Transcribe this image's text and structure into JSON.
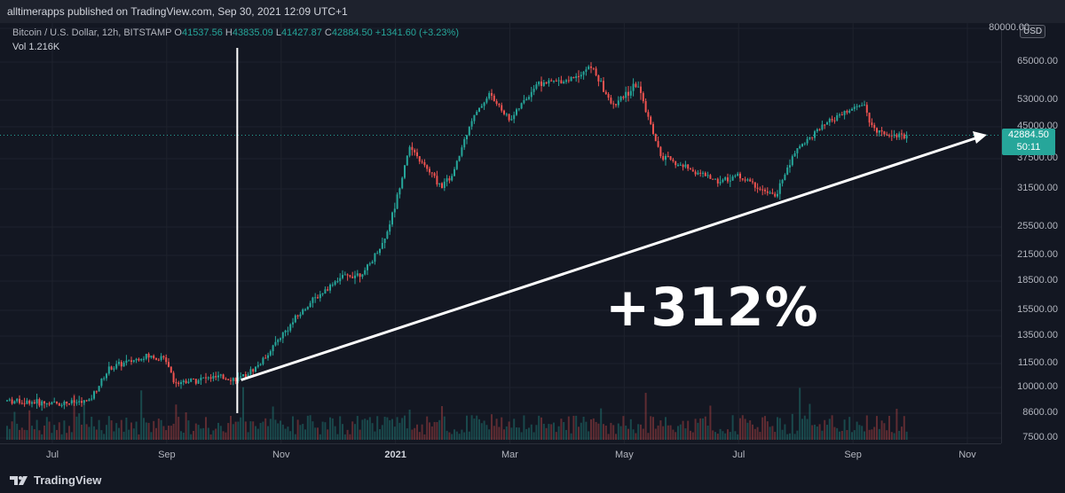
{
  "header": {
    "publisher_text": "alltimerapps published on TradingView.com, Sep 30, 2021 12:09 UTC+1"
  },
  "legend": {
    "symbol": "Bitcoin / U.S. Dollar, 12h, BITSTAMP",
    "open_label": "O",
    "open": "41537.56",
    "high_label": "H",
    "high": "43835.09",
    "low_label": "L",
    "low": "41427.87",
    "close_label": "C",
    "close": "42884.50",
    "change": "+1341.60 (+3.23%)",
    "vol_label": "Vol",
    "vol": "1.216K"
  },
  "price_scale": {
    "currency": "USD",
    "last_price": "42884.50",
    "countdown": "50:11"
  },
  "annotation": {
    "percent_text": "+312%"
  },
  "footer": {
    "brand": "TradingView"
  },
  "colors": {
    "up": "#26a69a",
    "down": "#ef5350",
    "background": "#131722",
    "annotation": "#ffffff",
    "dotted_line": "#26a69a"
  },
  "chart_data": {
    "type": "candlestick",
    "title": "Bitcoin / U.S. Dollar, 12h, BITSTAMP",
    "y_scale": "log",
    "ylim": [
      7500,
      80000
    ],
    "y_ticks": [
      7500,
      8600,
      10000,
      11500,
      13500,
      15500,
      18500,
      21500,
      25500,
      31500,
      37500,
      45000,
      53000,
      65000,
      80000
    ],
    "y_tick_labels": [
      "7500.00",
      "8600.00",
      "10000.00",
      "11500.00",
      "13500.00",
      "15500.00",
      "18500.00",
      "21500.00",
      "25500.00",
      "31500.00",
      "37500.00",
      "45000.00",
      "53000.00",
      "65000.00",
      "80000.00"
    ],
    "x_ticks": [
      "Jul",
      "Sep",
      "Nov",
      "2021",
      "Mar",
      "May",
      "Jul",
      "Sep",
      "Nov"
    ],
    "x_tick_months": [
      0,
      2,
      4,
      6,
      8,
      10,
      12,
      14,
      16
    ],
    "x_start": "2020-06",
    "series": [
      {
        "name": "BTCUSD",
        "points": [
          [
            "2020-06",
            9300
          ],
          [
            "2020-07",
            9100
          ],
          [
            "2020-07-20",
            9200
          ],
          [
            "2020-08",
            11200
          ],
          [
            "2020-08-20",
            12000
          ],
          [
            "2020-09",
            11800
          ],
          [
            "2020-09-05",
            10300
          ],
          [
            "2020-09-25",
            10600
          ],
          [
            "2020-10-10",
            10500
          ],
          [
            "2020-10-20",
            11500
          ],
          [
            "2020-11",
            13500
          ],
          [
            "2020-11-15",
            16000
          ],
          [
            "2020-12",
            18800
          ],
          [
            "2020-12-15",
            19500
          ],
          [
            "2020-12-25",
            23500
          ],
          [
            "2021-01",
            29000
          ],
          [
            "2021-01-08",
            40000
          ],
          [
            "2021-01-25",
            32000
          ],
          [
            "2021-02",
            34000
          ],
          [
            "2021-02-10",
            46000
          ],
          [
            "2021-02-20",
            55000
          ],
          [
            "2021-03",
            47000
          ],
          [
            "2021-03-15",
            58000
          ],
          [
            "2021-04",
            59000
          ],
          [
            "2021-04-14",
            63500
          ],
          [
            "2021-04-25",
            51000
          ],
          [
            "2021-05-08",
            58000
          ],
          [
            "2021-05-20",
            38000
          ],
          [
            "2021-06",
            36000
          ],
          [
            "2021-06-20",
            33000
          ],
          [
            "2021-07",
            34000
          ],
          [
            "2021-07-20",
            30000
          ],
          [
            "2021-08",
            39500
          ],
          [
            "2021-08-20",
            47000
          ],
          [
            "2021-09-07",
            52000
          ],
          [
            "2021-09-10",
            45000
          ],
          [
            "2021-09-20",
            43000
          ],
          [
            "2021-09-30",
            42884.5
          ]
        ]
      }
    ],
    "annotation_line": {
      "from": [
        "2020-10-10",
        10450
      ],
      "to": [
        "2021-11-01",
        43000
      ],
      "label": "+312%"
    },
    "vertical_marker": "2020-10-08",
    "last_price": 42884.5
  }
}
